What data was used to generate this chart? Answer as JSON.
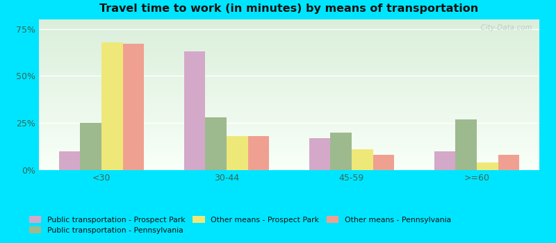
{
  "title": "Travel time to work (in minutes) by means of transportation",
  "categories": [
    "<30",
    "30-44",
    "45-59",
    ">=60"
  ],
  "series": [
    {
      "label": "Public transportation - Prospect Park",
      "values": [
        10,
        63,
        17,
        10
      ],
      "color": "#d4a8c8"
    },
    {
      "label": "Public transportation - Pennsylvania",
      "values": [
        25,
        28,
        20,
        27
      ],
      "color": "#9dba8e"
    },
    {
      "label": "Other means - Prospect Park",
      "values": [
        68,
        18,
        11,
        4
      ],
      "color": "#eee878"
    },
    {
      "label": "Other means - Pennsylvania",
      "values": [
        67,
        18,
        8,
        8
      ],
      "color": "#f0a090"
    }
  ],
  "yticks": [
    0,
    25,
    50,
    75
  ],
  "ytick_labels": [
    "0%",
    "25%",
    "50%",
    "75%"
  ],
  "ylim": [
    0,
    80
  ],
  "bg_outer": "#e8f4f0",
  "bg_grad_top": "#daeeda",
  "bg_grad_bottom": "#f8fff8",
  "border_color": "#00e5ff",
  "watermark": "  City-Data.com",
  "bar_width": 0.17,
  "legend_items": [
    {
      "label": "Public transportation - Prospect Park",
      "color": "#d4a8c8"
    },
    {
      "label": "Public transportation - Pennsylvania",
      "color": "#9dba8e"
    },
    {
      "label": "Other means - Prospect Park",
      "color": "#eee878"
    },
    {
      "label": "Other means - Pennsylvania",
      "color": "#f0a090"
    }
  ]
}
